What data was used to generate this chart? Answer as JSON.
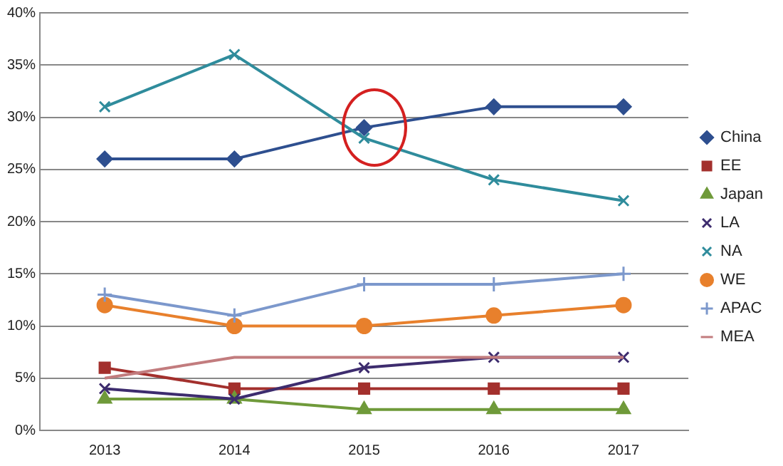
{
  "chart_data": {
    "type": "line",
    "categories": [
      "2013",
      "2014",
      "2015",
      "2016",
      "2017"
    ],
    "series": [
      {
        "name": "China",
        "color": "#2e4f8f",
        "marker": "diamond",
        "values": [
          26,
          26,
          29,
          31,
          31
        ]
      },
      {
        "name": "EE",
        "color": "#a3302d",
        "marker": "square",
        "values": [
          6,
          4,
          4,
          4,
          4
        ]
      },
      {
        "name": "Japan",
        "color": "#6f9a3a",
        "marker": "triangle",
        "values": [
          3,
          3,
          2,
          2,
          2
        ]
      },
      {
        "name": "LA",
        "color": "#3d2c6e",
        "marker": "cross",
        "values": [
          4,
          3,
          6,
          7,
          7
        ]
      },
      {
        "name": "NA",
        "color": "#2f8c9c",
        "marker": "cross",
        "values": [
          31,
          36,
          28,
          24,
          22
        ]
      },
      {
        "name": "WE",
        "color": "#e8802c",
        "marker": "circle",
        "values": [
          12,
          10,
          10,
          11,
          12
        ]
      },
      {
        "name": "APAC",
        "color": "#7c98cc",
        "marker": "plus",
        "values": [
          13,
          11,
          14,
          14,
          15
        ]
      },
      {
        "name": "MEA",
        "color": "#c27c7e",
        "marker": "none",
        "values": [
          5,
          7,
          7,
          7,
          7
        ]
      }
    ],
    "ylim": [
      0,
      40
    ],
    "yticks": [
      {
        "value": 0,
        "label": "0%"
      },
      {
        "value": 5,
        "label": "5%"
      },
      {
        "value": 10,
        "label": "10%"
      },
      {
        "value": 15,
        "label": "15%"
      },
      {
        "value": 20,
        "label": "20%"
      },
      {
        "value": 25,
        "label": "25%"
      },
      {
        "value": 30,
        "label": "30%"
      },
      {
        "value": 35,
        "label": "35%"
      },
      {
        "value": 40,
        "label": "40%"
      }
    ],
    "grid": "y",
    "legend": "right",
    "line_style": "solid"
  }
}
